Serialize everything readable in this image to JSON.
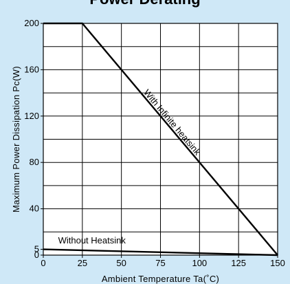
{
  "header": {
    "title": "Power Derating"
  },
  "chart_data": {
    "type": "line",
    "title": "Power Derating",
    "xlabel": "Ambient Temperature Ta(˚C)",
    "ylabel": "Maximum Power Dissipation Pc(W)",
    "xlim": [
      0,
      150
    ],
    "ylim": [
      0,
      200
    ],
    "x_ticks": [
      0,
      25,
      50,
      75,
      100,
      125,
      150
    ],
    "x_tick_labels": [
      "0",
      "25",
      "50",
      "75",
      "100",
      "125",
      "150"
    ],
    "y_ticks": [
      0,
      5,
      40,
      80,
      120,
      160,
      200
    ],
    "y_tick_labels": [
      "0",
      "5",
      "40",
      "80",
      "120",
      "160",
      "200"
    ],
    "grid": true,
    "x_grid_lines": [
      25,
      50,
      75,
      100,
      125
    ],
    "y_grid_lines": [
      20,
      40,
      60,
      80,
      100,
      120,
      140,
      160,
      180
    ],
    "series": [
      {
        "label": "With Infinite heatsink",
        "x": [
          0,
          25,
          150
        ],
        "y": [
          200,
          200,
          0
        ]
      },
      {
        "label": "Without Heatsink",
        "x": [
          0,
          150
        ],
        "y": [
          5,
          0
        ]
      }
    ],
    "annotations": [
      "With Infinite heatsink",
      "Without Heatsink"
    ],
    "colors": {
      "line": "#000000",
      "grid": "#000000",
      "background": "#cfe8f7",
      "plot": "#ffffff"
    }
  }
}
